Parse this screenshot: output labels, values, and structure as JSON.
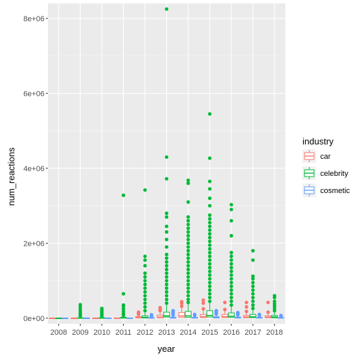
{
  "chart_data": {
    "type": "boxplot",
    "xlabel": "year",
    "ylabel": "num_reactions",
    "categories": [
      "2008",
      "2009",
      "2010",
      "2011",
      "2012",
      "2013",
      "2014",
      "2015",
      "2016",
      "2017",
      "2018"
    ],
    "ylim": [
      -150000,
      8400000
    ],
    "y_ticks": [
      0,
      2000000,
      4000000,
      6000000,
      8000000
    ],
    "y_tick_labels": [
      "0e+00",
      "2e+06",
      "4e+06",
      "6e+06",
      "8e+06"
    ],
    "legend": {
      "title": "industry",
      "entries": [
        "car",
        "celebrity",
        "cosmetic"
      ],
      "placement": "right"
    },
    "colors": {
      "car": "#F8766D",
      "celebrity": "#00BA38",
      "cosmetic": "#619CFF",
      "panel": "#EBEBEB",
      "grid": "#FFFFFF"
    },
    "series": [
      {
        "name": "car",
        "boxes": [
          {
            "x": "2008",
            "q1": 0,
            "median": 0,
            "q3": 2000,
            "whisker_max": 5000,
            "outliers": []
          },
          {
            "x": "2009",
            "q1": 0,
            "median": 0,
            "q3": 2000,
            "whisker_max": 6000,
            "outliers": []
          },
          {
            "x": "2010",
            "q1": 0,
            "median": 0,
            "q3": 2000,
            "whisker_max": 6000,
            "outliers": []
          },
          {
            "x": "2011",
            "q1": 0,
            "median": 1000,
            "q3": 4000,
            "whisker_max": 10000,
            "outliers": []
          },
          {
            "x": "2012",
            "q1": 5000,
            "median": 15000,
            "q3": 40000,
            "whisker_max": 90000,
            "outliers": [
              100000,
              130000,
              160000
            ]
          },
          {
            "x": "2013",
            "q1": 10000,
            "median": 30000,
            "q3": 80000,
            "whisker_max": 180000,
            "outliers": [
              200000,
              220000,
              250000,
              280000
            ]
          },
          {
            "x": "2014",
            "q1": 20000,
            "median": 60000,
            "q3": 150000,
            "whisker_max": 300000,
            "outliers": [
              320000,
              400000,
              440000
            ]
          },
          {
            "x": "2015",
            "q1": 15000,
            "median": 40000,
            "q3": 100000,
            "whisker_max": 220000,
            "outliers": [
              250000,
              400000,
              480000
            ]
          },
          {
            "x": "2016",
            "q1": 15000,
            "median": 40000,
            "q3": 100000,
            "whisker_max": 200000,
            "outliers": [
              230000,
              420000
            ]
          },
          {
            "x": "2017",
            "q1": 10000,
            "median": 30000,
            "q3": 70000,
            "whisker_max": 160000,
            "outliers": [
              180000,
              300000,
              420000
            ]
          },
          {
            "x": "2018",
            "q1": 10000,
            "median": 25000,
            "q3": 60000,
            "whisker_max": 140000,
            "outliers": [
              160000,
              420000
            ]
          }
        ]
      },
      {
        "name": "celebrity",
        "boxes": [
          {
            "x": "2008",
            "q1": 0,
            "median": 0,
            "q3": 1000,
            "whisker_max": 2000,
            "outliers": []
          },
          {
            "x": "2009",
            "q1": 1000,
            "median": 3000,
            "q3": 10000,
            "whisker_max": 25000,
            "outliers": [
              60000,
              90000,
              130000,
              180000,
              240000,
              300000,
              360000
            ]
          },
          {
            "x": "2010",
            "q1": 1000,
            "median": 4000,
            "q3": 12000,
            "whisker_max": 30000,
            "outliers": [
              50000,
              80000,
              110000,
              150000,
              190000,
              230000,
              260000
            ]
          },
          {
            "x": "2011",
            "q1": 2000,
            "median": 8000,
            "q3": 25000,
            "whisker_max": 60000,
            "outliers": [
              80000,
              120000,
              180000,
              250000,
              320000,
              350000,
              650000,
              3280000
            ]
          },
          {
            "x": "2012",
            "q1": 5000,
            "median": 20000,
            "q3": 60000,
            "whisker_max": 150000,
            "outliers": [
              200000,
              300000,
              400000,
              500000,
              600000,
              700000,
              800000,
              900000,
              1000000,
              1100000,
              1200000,
              1400000,
              1550000,
              1650000,
              3420000
            ]
          },
          {
            "x": "2013",
            "q1": 30000,
            "median": 60000,
            "q3": 160000,
            "whisker_max": 350000,
            "outliers": [
              400000,
              500000,
              600000,
              700000,
              800000,
              900000,
              1000000,
              1100000,
              1200000,
              1300000,
              1400000,
              1500000,
              1600000,
              1700000,
              1900000,
              2100000,
              2300000,
              2450000,
              2700000,
              2800000,
              3720000,
              4300000,
              8250000
            ]
          },
          {
            "x": "2014",
            "q1": 20000,
            "median": 60000,
            "q3": 180000,
            "whisker_max": 380000,
            "outliers": [
              420000,
              500000,
              600000,
              700000,
              800000,
              900000,
              1000000,
              1100000,
              1200000,
              1300000,
              1400000,
              1500000,
              1600000,
              1700000,
              1800000,
              1900000,
              2000000,
              2100000,
              2200000,
              2300000,
              2400000,
              2500000,
              2600000,
              2700000,
              3100000,
              3600000,
              3680000
            ]
          },
          {
            "x": "2015",
            "q1": 30000,
            "median": 70000,
            "q3": 200000,
            "whisker_max": 420000,
            "outliers": [
              450000,
              550000,
              650000,
              750000,
              850000,
              950000,
              1050000,
              1150000,
              1250000,
              1350000,
              1450000,
              1550000,
              1650000,
              1750000,
              1850000,
              1950000,
              2050000,
              2150000,
              2250000,
              2350000,
              2450000,
              2550000,
              2650000,
              2750000,
              3000000,
              3200000,
              3450000,
              3650000,
              4270000,
              5450000
            ]
          },
          {
            "x": "2016",
            "q1": 20000,
            "median": 50000,
            "q3": 140000,
            "whisker_max": 300000,
            "outliers": [
              350000,
              450000,
              550000,
              650000,
              750000,
              850000,
              950000,
              1050000,
              1150000,
              1250000,
              1350000,
              1450000,
              1550000,
              1650000,
              1750000,
              2200000,
              2600000,
              2900000,
              3030000
            ]
          },
          {
            "x": "2017",
            "q1": 15000,
            "median": 35000,
            "q3": 100000,
            "whisker_max": 220000,
            "outliers": [
              260000,
              350000,
              450000,
              550000,
              650000,
              750000,
              850000,
              950000,
              1050000,
              1120000,
              1550000,
              1800000
            ]
          },
          {
            "x": "2018",
            "q1": 10000,
            "median": 30000,
            "q3": 70000,
            "whisker_max": 160000,
            "outliers": [
              200000,
              260000,
              320000,
              380000,
              450000,
              550000,
              600000
            ]
          }
        ]
      },
      {
        "name": "cosmetic",
        "boxes": [
          {
            "x": "2008",
            "q1": 0,
            "median": 0,
            "q3": 1000,
            "whisker_max": 2000,
            "outliers": []
          },
          {
            "x": "2009",
            "q1": 0,
            "median": 1000,
            "q3": 3000,
            "whisker_max": 8000,
            "outliers": []
          },
          {
            "x": "2010",
            "q1": 0,
            "median": 1000,
            "q3": 3000,
            "whisker_max": 8000,
            "outliers": []
          },
          {
            "x": "2011",
            "q1": 0,
            "median": 1000,
            "q3": 4000,
            "whisker_max": 10000,
            "outliers": []
          },
          {
            "x": "2012",
            "q1": 2000,
            "median": 6000,
            "q3": 15000,
            "whisker_max": 35000,
            "outliers": [
              50000,
              70000,
              90000
            ]
          },
          {
            "x": "2013",
            "q1": 3000,
            "median": 8000,
            "q3": 25000,
            "whisker_max": 60000,
            "outliers": [
              80000,
              120000,
              160000,
              200000
            ]
          },
          {
            "x": "2014",
            "q1": 3000,
            "median": 8000,
            "q3": 20000,
            "whisker_max": 50000,
            "outliers": [
              70000,
              100000
            ]
          },
          {
            "x": "2015",
            "q1": 5000,
            "median": 15000,
            "q3": 40000,
            "whisker_max": 90000,
            "outliers": [
              110000,
              150000,
              180000,
              200000
            ]
          },
          {
            "x": "2016",
            "q1": 4000,
            "median": 10000,
            "q3": 30000,
            "whisker_max": 70000,
            "outliers": [
              90000,
              120000,
              150000
            ]
          },
          {
            "x": "2017",
            "q1": 3000,
            "median": 8000,
            "q3": 20000,
            "whisker_max": 50000,
            "outliers": [
              70000,
              100000
            ]
          },
          {
            "x": "2018",
            "q1": 2000,
            "median": 6000,
            "q3": 15000,
            "whisker_max": 35000,
            "outliers": [
              50000,
              70000
            ]
          }
        ]
      }
    ]
  }
}
